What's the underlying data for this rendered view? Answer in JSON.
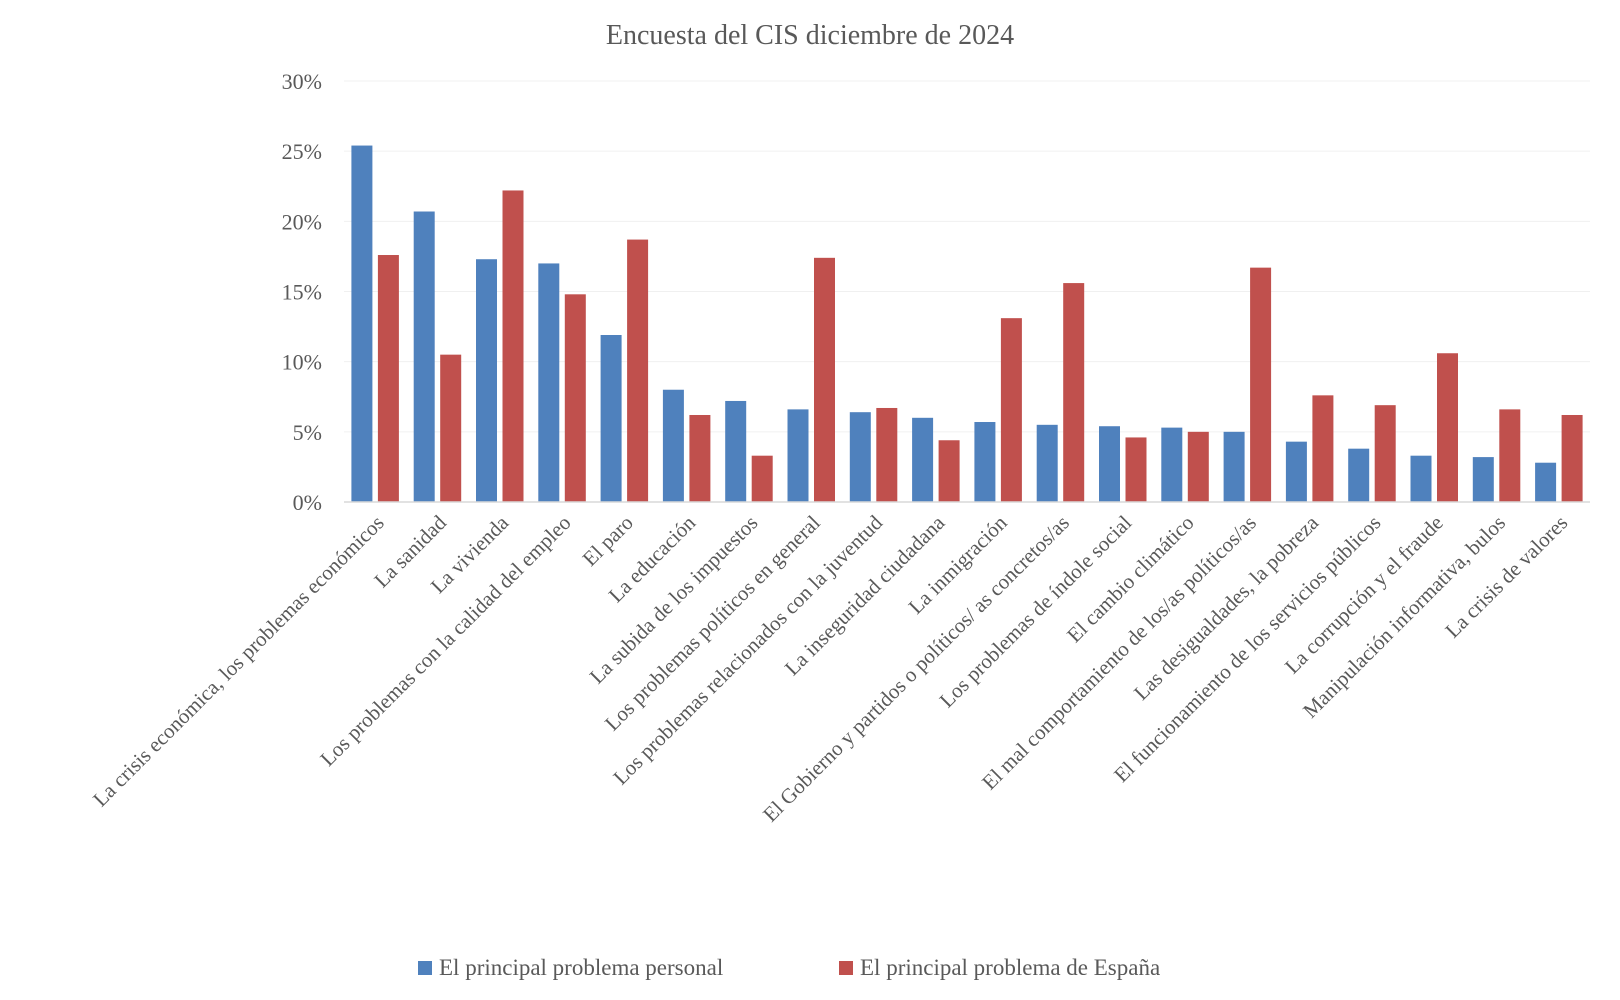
{
  "chart_data": {
    "type": "bar",
    "title": "Encuesta del CIS diciembre de 2024",
    "xlabel": "",
    "ylabel": "",
    "ylim": [
      0,
      30
    ],
    "y_ticks": [
      "0%",
      "5%",
      "10%",
      "15%",
      "20%",
      "25%",
      "30%"
    ],
    "y_tick_values": [
      0,
      5,
      10,
      15,
      20,
      25,
      30
    ],
    "grid": true,
    "legend_position": "bottom",
    "categories": [
      "La crisis económica, los problemas económicos",
      "La sanidad",
      "La vivienda",
      "Los problemas con la calidad del empleo",
      "El paro",
      "La educación",
      "La subida de los impuestos",
      "Los problemas políticos en general",
      "Los problemas relacionados con la juventud",
      "La inseguridad ciudadana",
      "La inmigración",
      "El Gobierno y partidos o políticos/ as concretos/as",
      "Los problemas de índole social",
      "El cambio climático",
      "El mal comportamiento de los/as políticos/as",
      "Las desigualdades, la pobreza",
      "El funcionamiento de los servicios públicos",
      "La corrupción y el fraude",
      "Manipulación informativa, bulos",
      "La crisis de valores"
    ],
    "series": [
      {
        "name": "El principal problema personal",
        "color": "#4f81bd",
        "values": [
          25.4,
          20.7,
          17.3,
          17.0,
          11.9,
          8.0,
          7.2,
          6.6,
          6.4,
          6.0,
          5.7,
          5.5,
          5.4,
          5.3,
          5.0,
          4.3,
          3.8,
          3.3,
          3.2,
          2.8
        ]
      },
      {
        "name": "El principal problema de España",
        "color": "#c0504d",
        "values": [
          17.6,
          10.5,
          22.2,
          14.8,
          18.7,
          6.2,
          3.3,
          17.4,
          6.7,
          4.4,
          13.1,
          15.6,
          4.6,
          5.0,
          16.7,
          7.6,
          6.9,
          10.6,
          6.6,
          6.2
        ]
      }
    ]
  }
}
